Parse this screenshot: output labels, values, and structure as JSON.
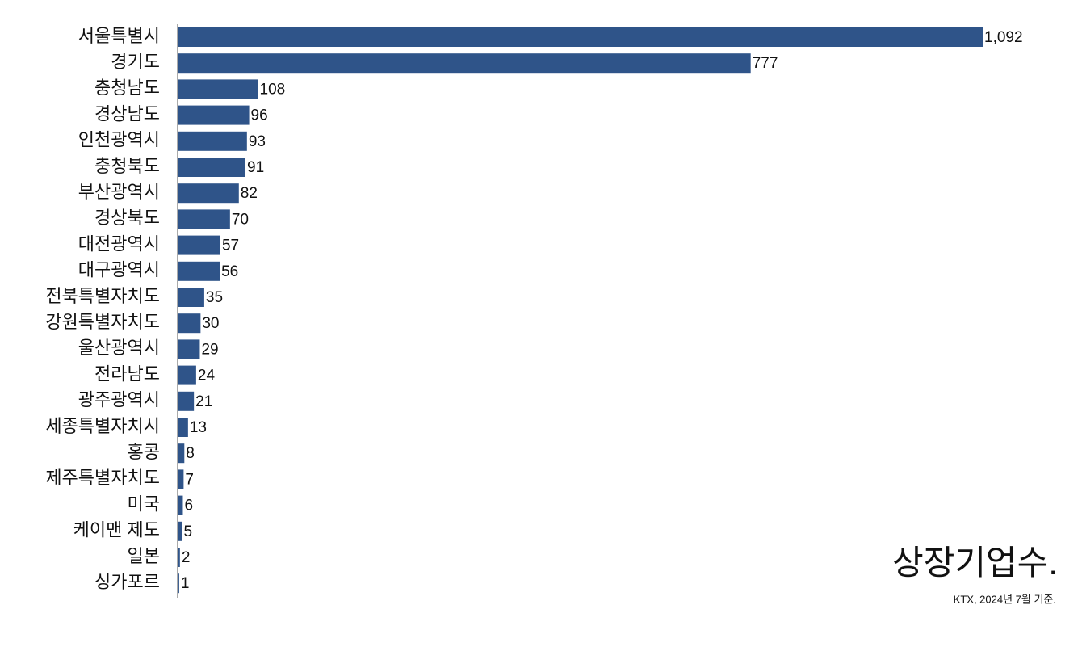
{
  "chart_data": {
    "type": "bar",
    "orientation": "horizontal",
    "title": "상장기업수.",
    "source": "KTX, 2024년 7월 기준.",
    "categories": [
      "서울특별시",
      "경기도",
      "충청남도",
      "경상남도",
      "인천광역시",
      "충청북도",
      "부산광역시",
      "경상북도",
      "대전광역시",
      "대구광역시",
      "전북특별자치도",
      "강원특별자치도",
      "울산광역시",
      "전라남도",
      "광주광역시",
      "세종특별자치시",
      "홍콩",
      "제주특별자치도",
      "미국",
      "케이맨 제도",
      "일본",
      "싱가포르"
    ],
    "values": [
      1092,
      777,
      108,
      96,
      93,
      91,
      82,
      70,
      57,
      56,
      35,
      30,
      29,
      24,
      21,
      13,
      8,
      7,
      6,
      5,
      2,
      1
    ],
    "value_labels": [
      "1,092",
      "777",
      "108",
      "96",
      "93",
      "91",
      "82",
      "70",
      "57",
      "56",
      "35",
      "30",
      "29",
      "24",
      "21",
      "13",
      "8",
      "7",
      "6",
      "5",
      "2",
      "1"
    ],
    "color": "#2f5489"
  }
}
